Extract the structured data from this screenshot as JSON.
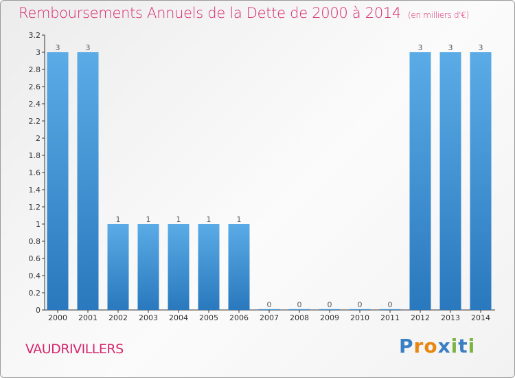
{
  "title": "Remboursements Annuels de la Dette de 2000 à 2014",
  "unit_label": "(en milliers d'€)",
  "commune": "VAUDRIVILLERS",
  "logo": {
    "text": "Proxiti",
    "letters": [
      "P",
      "r",
      "o",
      "x",
      "i",
      "t",
      "i"
    ],
    "colors": [
      "#3a7fc4",
      "#e8860e",
      "#e8860e",
      "#3a7fc4",
      "#7cb342",
      "#3a7fc4",
      "#7cb342"
    ]
  },
  "colors": {
    "title": "#d6266b",
    "bar": "#4a9bdf",
    "bar_dark": "#2a78bd"
  },
  "chart_data": {
    "type": "bar",
    "categories": [
      "2000",
      "2001",
      "2002",
      "2003",
      "2004",
      "2005",
      "2006",
      "2007",
      "2008",
      "2009",
      "2010",
      "2011",
      "2012",
      "2013",
      "2014"
    ],
    "values": [
      3,
      3,
      1,
      1,
      1,
      1,
      1,
      0,
      0,
      0,
      0,
      0,
      3,
      3,
      3
    ],
    "data_labels": [
      "3",
      "3",
      "1",
      "1",
      "1",
      "1",
      "1",
      "0",
      "0",
      "0",
      "0",
      "0",
      "3",
      "3",
      "3"
    ],
    "y_ticks": [
      {
        "value": 0,
        "label": "0"
      },
      {
        "value": 0.2,
        "label": "0.2"
      },
      {
        "value": 0.4,
        "label": "0.4"
      },
      {
        "value": 0.6,
        "label": "0.6"
      },
      {
        "value": 0.8,
        "label": "0.8"
      },
      {
        "value": 1,
        "label": "1"
      },
      {
        "value": 1.2,
        "label": "1.2"
      },
      {
        "value": 1.4,
        "label": "1.4"
      },
      {
        "value": 1.6,
        "label": "1.6"
      },
      {
        "value": 1.8,
        "label": "1.8"
      },
      {
        "value": 2,
        "label": "2"
      },
      {
        "value": 2.2,
        "label": "2.2"
      },
      {
        "value": 2.4,
        "label": "2.4"
      },
      {
        "value": 2.6,
        "label": "2.6"
      },
      {
        "value": 2.8,
        "label": "2.8"
      },
      {
        "value": 3,
        "label": "3"
      },
      {
        "value": 3.2,
        "label": "3.2"
      }
    ],
    "ylim": [
      0,
      3.2
    ],
    "grid": false,
    "legend": "none"
  }
}
